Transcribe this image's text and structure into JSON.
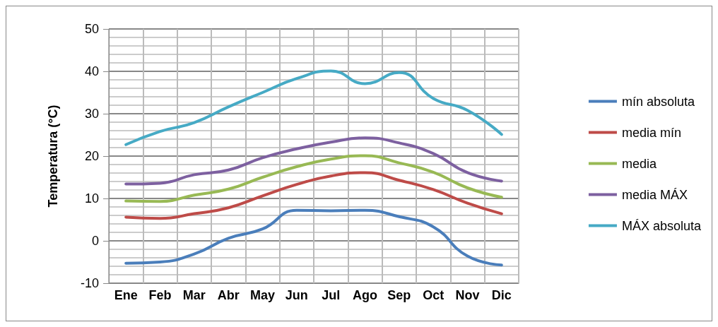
{
  "chart_data": {
    "type": "line",
    "ylabel": "Temperatura (°C)",
    "categories": [
      "Ene",
      "Feb",
      "Mar",
      "Abr",
      "May",
      "Jun",
      "Jul",
      "Ago",
      "Sep",
      "Oct",
      "Nov",
      "Dic"
    ],
    "series": [
      {
        "name": "mín absoluta",
        "color": "#4a7ebb",
        "values": [
          -5.3,
          -5,
          -3.1,
          0.6,
          2.8,
          7.2,
          7.1,
          7.2,
          5.7,
          3.3,
          -3.6,
          -5.7
        ]
      },
      {
        "name": "media mín",
        "color": "#be4b48",
        "values": [
          5.6,
          5.3,
          6.4,
          7.8,
          10.6,
          13.3,
          15.3,
          16.1,
          14.3,
          12.1,
          8.9,
          6.4
        ]
      },
      {
        "name": "media",
        "color": "#98b954",
        "values": [
          9.4,
          9.3,
          10.8,
          12.2,
          15,
          17.5,
          19.3,
          20.1,
          18.4,
          16.2,
          12.5,
          10.3
        ]
      },
      {
        "name": "media MÁX",
        "color": "#7d60a0",
        "values": [
          13.4,
          13.6,
          15.6,
          16.7,
          19.6,
          21.7,
          23.3,
          24.3,
          23.1,
          20.6,
          16.1,
          14.1
        ]
      },
      {
        "name": "MÁX absoluta",
        "color": "#46aac5",
        "values": [
          22.7,
          25.8,
          27.9,
          31.6,
          35,
          38.3,
          40.1,
          37.1,
          39.7,
          33.6,
          30.8,
          25.1
        ]
      }
    ],
    "ylim": [
      -10,
      50
    ],
    "yticks": [
      -10,
      0,
      10,
      20,
      30,
      40,
      50
    ],
    "grid": true,
    "legend": "right",
    "marker": "none",
    "line_style": "solid"
  }
}
